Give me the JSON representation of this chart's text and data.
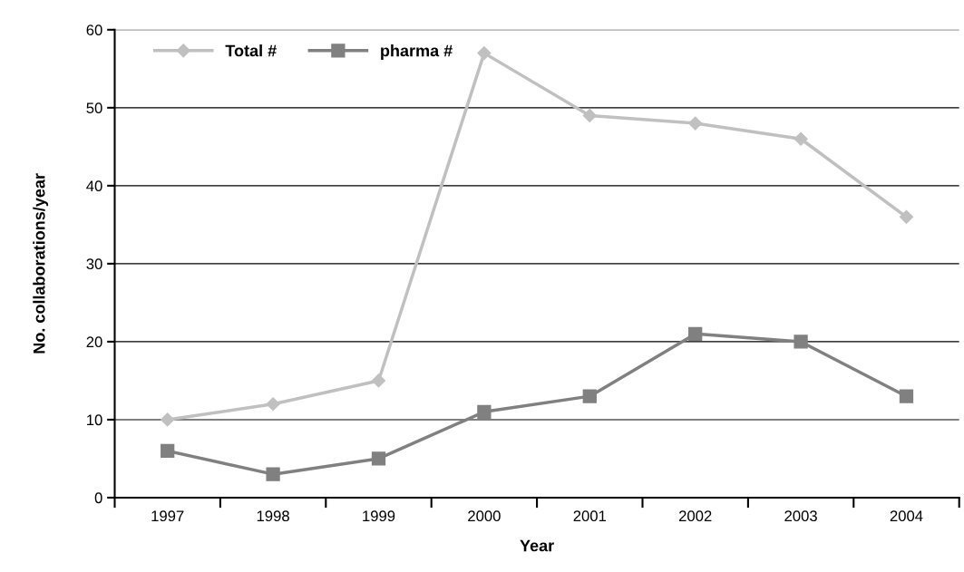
{
  "chart_data": {
    "type": "line",
    "xlabel": "Year",
    "ylabel": "No. collaborations/year",
    "categories": [
      "1997",
      "1998",
      "1999",
      "2000",
      "2001",
      "2002",
      "2003",
      "2004"
    ],
    "series": [
      {
        "name": "Total #",
        "color": "#c0c0c0",
        "marker": "diamond",
        "values": [
          10,
          12,
          15,
          57,
          49,
          48,
          46,
          36
        ]
      },
      {
        "name": "pharma #",
        "color": "#808080",
        "marker": "square",
        "values": [
          6,
          3,
          5,
          11,
          13,
          21,
          20,
          13
        ]
      }
    ],
    "ylim": [
      0,
      60
    ],
    "yticks": [
      0,
      10,
      20,
      30,
      40,
      50,
      60
    ],
    "grid": "y",
    "legend": "top left",
    "line_style": "solid"
  }
}
